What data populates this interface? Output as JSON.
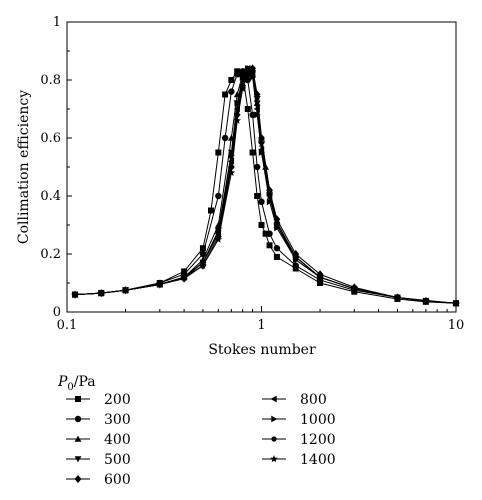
{
  "chart_data": {
    "type": "line",
    "title": "",
    "xlabel": "Stokes number",
    "ylabel": "Collimation efficiency",
    "xscale": "log",
    "xlim": [
      0.1,
      10
    ],
    "ylim": [
      0,
      1
    ],
    "x_ticks": [
      0.1,
      1,
      10
    ],
    "x_tick_labels": [
      "0.1",
      "1",
      "10"
    ],
    "y_ticks": [
      0,
      0.2,
      0.4,
      0.6,
      0.8,
      1
    ],
    "y_tick_labels": [
      "0",
      "0.2",
      "0.4",
      "0.6",
      "0.8",
      "1"
    ],
    "grid": false,
    "legend": {
      "title_symbol": "P",
      "title_subscript": "0",
      "title_unit": "/Pa",
      "placement": "below"
    },
    "series": [
      {
        "name": "200",
        "marker": "square",
        "x": [
          0.11,
          0.15,
          0.2,
          0.3,
          0.4,
          0.5,
          0.55,
          0.6,
          0.65,
          0.7,
          0.75,
          0.8,
          0.85,
          0.9,
          0.95,
          1.0,
          1.05,
          1.1,
          1.2,
          1.5,
          2,
          3,
          5,
          7,
          10
        ],
        "y": [
          0.06,
          0.065,
          0.075,
          0.1,
          0.14,
          0.22,
          0.35,
          0.55,
          0.75,
          0.8,
          0.83,
          0.82,
          0.7,
          0.55,
          0.4,
          0.3,
          0.27,
          0.23,
          0.19,
          0.15,
          0.1,
          0.07,
          0.045,
          0.035,
          0.03
        ]
      },
      {
        "name": "300",
        "marker": "circle",
        "x": [
          0.11,
          0.15,
          0.2,
          0.3,
          0.4,
          0.5,
          0.6,
          0.65,
          0.7,
          0.75,
          0.8,
          0.85,
          0.9,
          0.95,
          1.0,
          1.1,
          1.2,
          1.5,
          2,
          3,
          5,
          7,
          10
        ],
        "y": [
          0.06,
          0.065,
          0.075,
          0.1,
          0.13,
          0.2,
          0.4,
          0.6,
          0.76,
          0.82,
          0.83,
          0.8,
          0.68,
          0.5,
          0.38,
          0.27,
          0.22,
          0.16,
          0.11,
          0.075,
          0.05,
          0.038,
          0.03
        ]
      },
      {
        "name": "400",
        "marker": "triangle-up",
        "x": [
          0.11,
          0.15,
          0.2,
          0.3,
          0.4,
          0.5,
          0.6,
          0.7,
          0.75,
          0.8,
          0.85,
          0.9,
          0.95,
          1.0,
          1.05,
          1.1,
          1.2,
          1.5,
          2,
          3,
          5,
          7,
          10
        ],
        "y": [
          0.06,
          0.065,
          0.075,
          0.095,
          0.12,
          0.18,
          0.3,
          0.6,
          0.75,
          0.82,
          0.84,
          0.82,
          0.72,
          0.6,
          0.5,
          0.42,
          0.3,
          0.19,
          0.12,
          0.08,
          0.05,
          0.04,
          0.03
        ]
      },
      {
        "name": "500",
        "marker": "triangle-down",
        "x": [
          0.11,
          0.15,
          0.2,
          0.3,
          0.4,
          0.5,
          0.6,
          0.7,
          0.75,
          0.8,
          0.85,
          0.9,
          0.95,
          1.0,
          1.1,
          1.2,
          1.5,
          2,
          3,
          5,
          7,
          10
        ],
        "y": [
          0.06,
          0.065,
          0.075,
          0.095,
          0.12,
          0.17,
          0.28,
          0.55,
          0.72,
          0.8,
          0.83,
          0.82,
          0.72,
          0.58,
          0.4,
          0.3,
          0.18,
          0.12,
          0.08,
          0.05,
          0.038,
          0.03
        ]
      },
      {
        "name": "600",
        "marker": "diamond",
        "x": [
          0.11,
          0.15,
          0.2,
          0.3,
          0.4,
          0.5,
          0.6,
          0.7,
          0.75,
          0.8,
          0.85,
          0.9,
          0.95,
          1.0,
          1.1,
          1.2,
          1.5,
          2,
          3,
          5,
          7,
          10
        ],
        "y": [
          0.06,
          0.065,
          0.075,
          0.095,
          0.115,
          0.16,
          0.26,
          0.5,
          0.68,
          0.78,
          0.82,
          0.84,
          0.75,
          0.6,
          0.42,
          0.32,
          0.2,
          0.13,
          0.085,
          0.05,
          0.038,
          0.03
        ]
      },
      {
        "name": "800",
        "marker": "triangle-left",
        "x": [
          0.11,
          0.15,
          0.2,
          0.3,
          0.4,
          0.5,
          0.6,
          0.7,
          0.75,
          0.8,
          0.85,
          0.9,
          0.95,
          1.0,
          1.1,
          1.2,
          1.5,
          2,
          3,
          5,
          7,
          10
        ],
        "y": [
          0.06,
          0.065,
          0.075,
          0.095,
          0.12,
          0.17,
          0.27,
          0.52,
          0.7,
          0.8,
          0.84,
          0.82,
          0.7,
          0.56,
          0.4,
          0.3,
          0.19,
          0.12,
          0.08,
          0.05,
          0.038,
          0.03
        ]
      },
      {
        "name": "1000",
        "marker": "triangle-right",
        "x": [
          0.11,
          0.15,
          0.2,
          0.3,
          0.4,
          0.5,
          0.6,
          0.7,
          0.75,
          0.8,
          0.85,
          0.9,
          0.95,
          1.0,
          1.1,
          1.2,
          1.5,
          2,
          3,
          5,
          7,
          10
        ],
        "y": [
          0.06,
          0.065,
          0.075,
          0.095,
          0.12,
          0.17,
          0.28,
          0.54,
          0.72,
          0.81,
          0.84,
          0.81,
          0.68,
          0.55,
          0.38,
          0.29,
          0.18,
          0.12,
          0.08,
          0.05,
          0.038,
          0.03
        ]
      },
      {
        "name": "1200",
        "marker": "circle-small",
        "x": [
          0.11,
          0.15,
          0.2,
          0.3,
          0.4,
          0.5,
          0.6,
          0.7,
          0.75,
          0.8,
          0.85,
          0.9,
          0.95,
          1.0,
          1.1,
          1.2,
          1.5,
          2,
          3,
          5,
          7,
          10
        ],
        "y": [
          0.06,
          0.065,
          0.075,
          0.095,
          0.12,
          0.17,
          0.27,
          0.5,
          0.68,
          0.78,
          0.83,
          0.84,
          0.74,
          0.6,
          0.42,
          0.31,
          0.19,
          0.12,
          0.08,
          0.05,
          0.038,
          0.03
        ]
      },
      {
        "name": "1400",
        "marker": "star",
        "x": [
          0.11,
          0.15,
          0.2,
          0.3,
          0.4,
          0.5,
          0.6,
          0.7,
          0.75,
          0.8,
          0.85,
          0.9,
          0.95,
          1.0,
          1.1,
          1.2,
          1.5,
          2,
          3,
          5,
          7,
          10
        ],
        "y": [
          0.06,
          0.065,
          0.075,
          0.095,
          0.12,
          0.16,
          0.25,
          0.48,
          0.66,
          0.77,
          0.82,
          0.83,
          0.74,
          0.58,
          0.4,
          0.3,
          0.19,
          0.12,
          0.08,
          0.05,
          0.038,
          0.03
        ]
      }
    ]
  }
}
